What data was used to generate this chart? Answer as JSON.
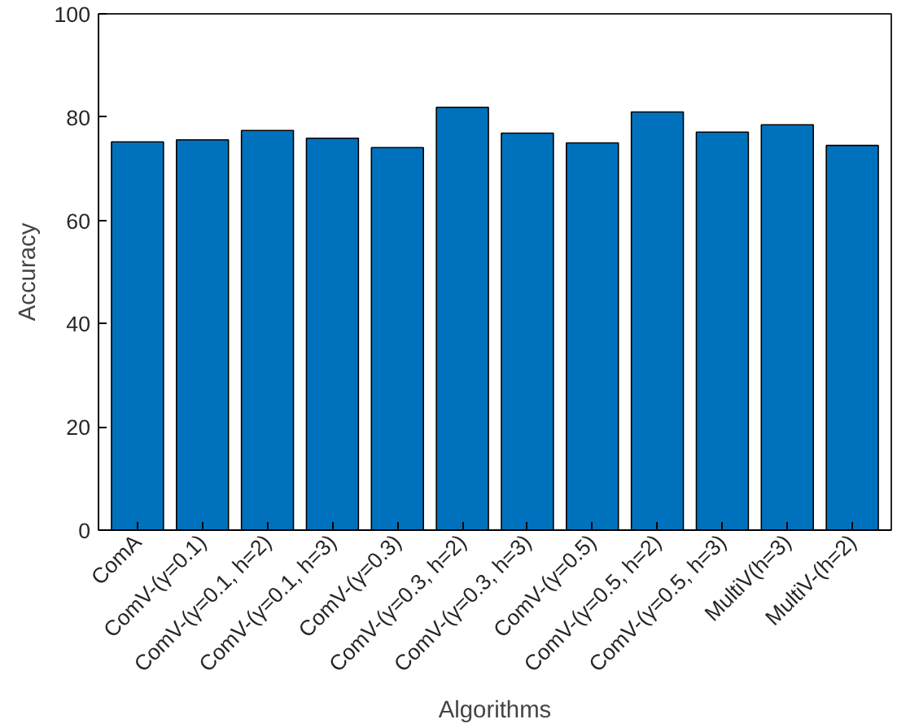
{
  "chart_data": {
    "type": "bar",
    "xlabel": "Algorithms",
    "ylabel": "Accuracy",
    "categories": [
      "ComA",
      "ComV-(γ=0.1)",
      "ComV-(γ=0.1, h=2)",
      "ComV-(γ=0.1, h=3)",
      "ComV-(γ=0.3)",
      "ComV-(γ=0.3, h=2)",
      "ComV-(γ=0.3, h=3)",
      "ComV-(γ=0.5)",
      "ComV-(γ=0.5, h=2)",
      "ComV-(γ=0.5, h=3)",
      "MultiV(h=3)",
      "MultiV-(h=2)"
    ],
    "values": [
      75.2,
      75.6,
      77.4,
      75.9,
      74.1,
      81.9,
      76.9,
      75.0,
      81.0,
      77.1,
      78.5,
      74.5
    ],
    "color": "#0072bd",
    "ylim": [
      0,
      100
    ],
    "yticks": [
      0,
      20,
      40,
      60,
      80,
      100
    ],
    "grid": false
  }
}
